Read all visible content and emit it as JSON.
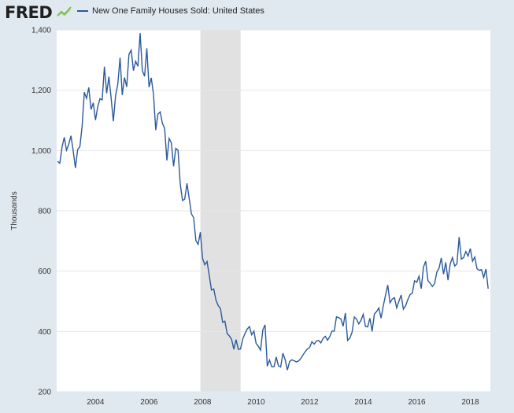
{
  "header": {
    "logo_text": "FRED",
    "logo_icon": "trend-line-icon",
    "legend_label": "New One Family Houses Sold: United States"
  },
  "colors": {
    "line": "#2b5a9a",
    "background": "#e1e9f0",
    "plot_background": "#ffffff",
    "recession": "#e1e1e1"
  },
  "chart_data": {
    "type": "line",
    "title": "",
    "xlabel": "",
    "ylabel": "Thousands",
    "xlim": [
      2002.55,
      2018.75
    ],
    "ylim": [
      200,
      1400
    ],
    "y_ticks": [
      200,
      400,
      600,
      800,
      1000,
      1200,
      1400
    ],
    "y_tick_labels": [
      "200",
      "400",
      "600",
      "800",
      "1,000",
      "1,200",
      "1,400"
    ],
    "x_ticks": [
      2004,
      2006,
      2008,
      2010,
      2012,
      2014,
      2016,
      2018
    ],
    "x_tick_labels": [
      "2004",
      "2006",
      "2008",
      "2010",
      "2012",
      "2014",
      "2016",
      "2018"
    ],
    "grid": "horizontal",
    "recession_shading": [
      [
        2007.92,
        2009.42
      ]
    ],
    "series": [
      {
        "name": "New One Family Houses Sold: United States",
        "x": [
          2002.583,
          2002.667,
          2002.75,
          2002.833,
          2002.917,
          2003.0,
          2003.083,
          2003.167,
          2003.25,
          2003.333,
          2003.417,
          2003.5,
          2003.583,
          2003.667,
          2003.75,
          2003.833,
          2003.917,
          2004.0,
          2004.083,
          2004.167,
          2004.25,
          2004.333,
          2004.417,
          2004.5,
          2004.583,
          2004.667,
          2004.75,
          2004.833,
          2004.917,
          2005.0,
          2005.083,
          2005.167,
          2005.25,
          2005.333,
          2005.417,
          2005.5,
          2005.583,
          2005.667,
          2005.75,
          2005.833,
          2005.917,
          2006.0,
          2006.083,
          2006.167,
          2006.25,
          2006.333,
          2006.417,
          2006.5,
          2006.583,
          2006.667,
          2006.75,
          2006.833,
          2006.917,
          2007.0,
          2007.083,
          2007.167,
          2007.25,
          2007.333,
          2007.417,
          2007.5,
          2007.583,
          2007.667,
          2007.75,
          2007.833,
          2007.917,
          2008.0,
          2008.083,
          2008.167,
          2008.25,
          2008.333,
          2008.417,
          2008.5,
          2008.583,
          2008.667,
          2008.75,
          2008.833,
          2008.917,
          2009.0,
          2009.083,
          2009.167,
          2009.25,
          2009.333,
          2009.417,
          2009.5,
          2009.583,
          2009.667,
          2009.75,
          2009.833,
          2009.917,
          2010.0,
          2010.083,
          2010.167,
          2010.25,
          2010.333,
          2010.417,
          2010.5,
          2010.583,
          2010.667,
          2010.75,
          2010.833,
          2010.917,
          2011.0,
          2011.083,
          2011.167,
          2011.25,
          2011.333,
          2011.417,
          2011.5,
          2011.583,
          2011.667,
          2011.75,
          2011.833,
          2011.917,
          2012.0,
          2012.083,
          2012.167,
          2012.25,
          2012.333,
          2012.417,
          2012.5,
          2012.583,
          2012.667,
          2012.75,
          2012.833,
          2012.917,
          2013.0,
          2013.083,
          2013.167,
          2013.25,
          2013.333,
          2013.417,
          2013.5,
          2013.583,
          2013.667,
          2013.75,
          2013.833,
          2013.917,
          2014.0,
          2014.083,
          2014.167,
          2014.25,
          2014.333,
          2014.417,
          2014.5,
          2014.583,
          2014.667,
          2014.75,
          2014.833,
          2014.917,
          2015.0,
          2015.083,
          2015.167,
          2015.25,
          2015.333,
          2015.417,
          2015.5,
          2015.583,
          2015.667,
          2015.75,
          2015.833,
          2015.917,
          2016.0,
          2016.083,
          2016.167,
          2016.25,
          2016.333,
          2016.417,
          2016.5,
          2016.583,
          2016.667,
          2016.75,
          2016.833,
          2016.917,
          2017.0,
          2017.083,
          2017.167,
          2017.25,
          2017.333,
          2017.417,
          2017.5,
          2017.583,
          2017.667,
          2017.75,
          2017.833,
          2017.917,
          2018.0,
          2018.083,
          2018.167,
          2018.25,
          2018.333,
          2018.417,
          2018.5,
          2018.583,
          2018.667
        ],
        "values": [
          964,
          958,
          1011,
          1044,
          1001,
          1020,
          1049,
          999,
          942,
          1003,
          1013,
          1080,
          1193,
          1173,
          1209,
          1136,
          1158,
          1101,
          1145,
          1172,
          1168,
          1278,
          1190,
          1245,
          1175,
          1097,
          1182,
          1220,
          1308,
          1184,
          1242,
          1211,
          1319,
          1333,
          1265,
          1296,
          1279,
          1389,
          1265,
          1246,
          1339,
          1210,
          1241,
          1186,
          1068,
          1121,
          1128,
          1090,
          1073,
          967,
          1040,
          1025,
          948,
          1007,
          1001,
          888,
          834,
          839,
          891,
          841,
          790,
          777,
          701,
          689,
          729,
          642,
          621,
          632,
          585,
          537,
          541,
          504,
          486,
          476,
          430,
          434,
          393,
          385,
          374,
          341,
          373,
          341,
          342,
          375,
          393,
          408,
          416,
          389,
          401,
          360,
          351,
          338,
          405,
          422,
          285,
          305,
          283,
          283,
          315,
          286,
          282,
          328,
          307,
          272,
          300,
          306,
          303,
          299,
          302,
          310,
          322,
          333,
          342,
          347,
          366,
          358,
          368,
          370,
          362,
          377,
          384,
          371,
          383,
          401,
          401,
          448,
          446,
          441,
          417,
          461,
          370,
          378,
          397,
          448,
          441,
          425,
          437,
          457,
          417,
          415,
          444,
          400,
          458,
          466,
          478,
          444,
          485,
          520,
          554,
          495,
          507,
          512,
          478,
          500,
          521,
          474,
          485,
          506,
          522,
          527,
          568,
          563,
          583,
          542,
          613,
          633,
          569,
          560,
          549,
          559,
          597,
          610,
          644,
          590,
          629,
          570,
          624,
          645,
          617,
          624,
          713,
          640,
          645,
          665,
          650,
          675,
          633,
          647,
          608,
          603,
          605,
          579,
          607,
          542
        ]
      }
    ]
  }
}
